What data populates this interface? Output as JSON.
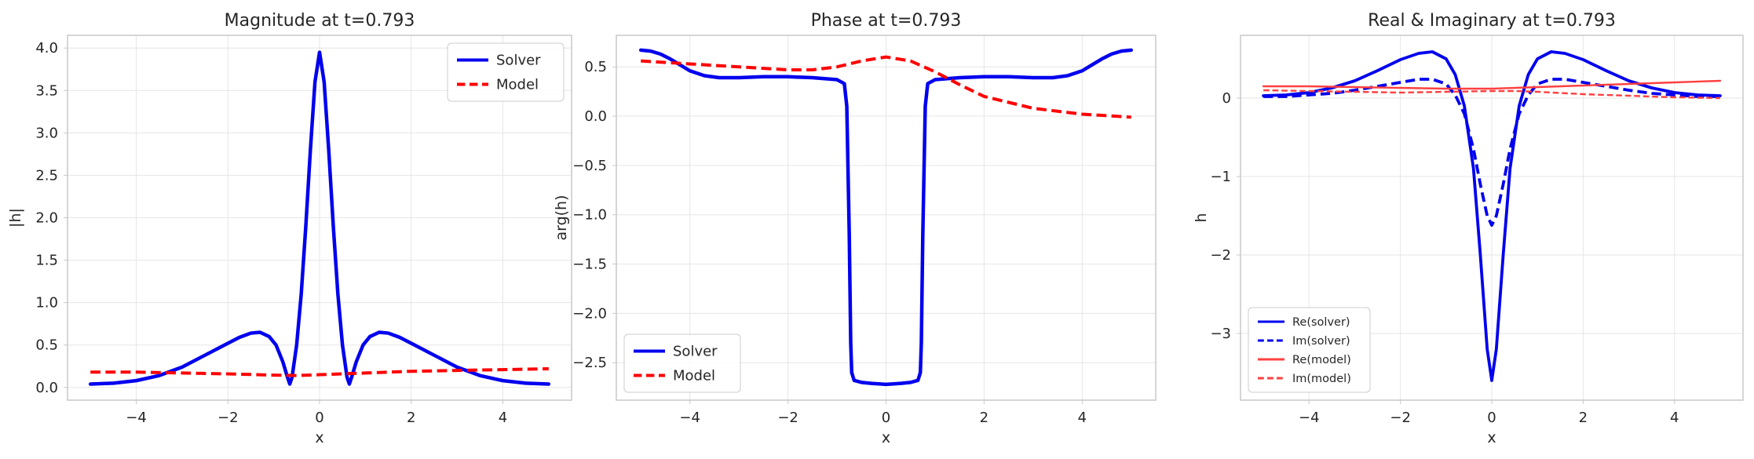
{
  "chart_data": [
    {
      "type": "line",
      "title": "Magnitude at t=0.793",
      "xlabel": "x",
      "ylabel": "|h|",
      "xlim": [
        -5.5,
        5.5
      ],
      "ylim": [
        -0.15,
        4.15
      ],
      "xticks": [
        -4,
        -2,
        0,
        2,
        4
      ],
      "yticks": [
        0.0,
        0.5,
        1.0,
        1.5,
        2.0,
        2.5,
        3.0,
        3.5,
        4.0
      ],
      "ytick_labels": [
        "0.0",
        "0.5",
        "1.0",
        "1.5",
        "2.0",
        "2.5",
        "3.0",
        "3.5",
        "4.0"
      ],
      "grid": true,
      "legend": "top-right",
      "series": [
        {
          "name": "Solver",
          "color": "#0000ee",
          "style": "solid",
          "x": [
            -5,
            -4.5,
            -4,
            -3.5,
            -3,
            -2.5,
            -2,
            -1.75,
            -1.5,
            -1.3,
            -1.1,
            -0.95,
            -0.8,
            -0.7,
            -0.65,
            -0.6,
            -0.5,
            -0.4,
            -0.3,
            -0.2,
            -0.1,
            0,
            0.1,
            0.2,
            0.3,
            0.4,
            0.5,
            0.6,
            0.65,
            0.7,
            0.8,
            0.95,
            1.1,
            1.3,
            1.5,
            1.75,
            2,
            2.5,
            3,
            3.5,
            4,
            4.5,
            5
          ],
          "y": [
            0.04,
            0.05,
            0.08,
            0.14,
            0.24,
            0.38,
            0.52,
            0.59,
            0.64,
            0.65,
            0.6,
            0.5,
            0.3,
            0.12,
            0.04,
            0.12,
            0.5,
            1.1,
            1.9,
            2.8,
            3.6,
            3.95,
            3.6,
            2.8,
            1.9,
            1.1,
            0.5,
            0.12,
            0.04,
            0.12,
            0.3,
            0.5,
            0.6,
            0.65,
            0.64,
            0.59,
            0.52,
            0.38,
            0.24,
            0.14,
            0.08,
            0.05,
            0.04
          ]
        },
        {
          "name": "Model",
          "color": "#ff0000",
          "style": "dashed",
          "x": [
            -5,
            -4,
            -3,
            -2,
            -1,
            -0.5,
            0,
            1,
            2,
            3,
            4,
            5
          ],
          "y": [
            0.18,
            0.18,
            0.17,
            0.16,
            0.145,
            0.14,
            0.15,
            0.17,
            0.19,
            0.2,
            0.21,
            0.22
          ]
        }
      ]
    },
    {
      "type": "line",
      "title": "Phase at t=0.793",
      "xlabel": "x",
      "ylabel": "arg(h)",
      "xlim": [
        -5.5,
        5.5
      ],
      "ylim": [
        -2.88,
        0.82
      ],
      "xticks": [
        -4,
        -2,
        0,
        2,
        4
      ],
      "yticks": [
        0.5,
        0.0,
        -0.5,
        -1.0,
        -1.5,
        -2.0,
        -2.5
      ],
      "ytick_labels": [
        "0.5",
        "0.0",
        "−0.5",
        "−1.0",
        "−1.5",
        "−2.0",
        "−2.5"
      ],
      "grid": true,
      "legend": "bottom-left",
      "series": [
        {
          "name": "Solver",
          "color": "#0000ee",
          "style": "solid",
          "x": [
            -5,
            -4.8,
            -4.6,
            -4.4,
            -4.2,
            -4,
            -3.7,
            -3.4,
            -3,
            -2.5,
            -2,
            -1.5,
            -1,
            -0.85,
            -0.8,
            -0.75,
            -0.72,
            -0.7,
            -0.65,
            -0.5,
            -0.3,
            0,
            0.3,
            0.5,
            0.65,
            0.7,
            0.72,
            0.75,
            0.8,
            0.85,
            1,
            1.5,
            2,
            2.5,
            3,
            3.4,
            3.7,
            4,
            4.2,
            4.4,
            4.6,
            4.8,
            5
          ],
          "y": [
            0.67,
            0.66,
            0.63,
            0.58,
            0.52,
            0.46,
            0.41,
            0.39,
            0.39,
            0.4,
            0.4,
            0.39,
            0.37,
            0.33,
            0.1,
            -1.2,
            -2.3,
            -2.6,
            -2.68,
            -2.7,
            -2.71,
            -2.72,
            -2.71,
            -2.7,
            -2.68,
            -2.6,
            -2.3,
            -1.2,
            0.1,
            0.33,
            0.37,
            0.39,
            0.4,
            0.4,
            0.39,
            0.39,
            0.41,
            0.46,
            0.52,
            0.58,
            0.63,
            0.66,
            0.67
          ]
        },
        {
          "name": "Model",
          "color": "#ff0000",
          "style": "dashed",
          "x": [
            -5,
            -4,
            -3,
            -2,
            -1.5,
            -1,
            -0.5,
            0,
            0.5,
            1,
            1.5,
            2,
            3,
            4,
            5
          ],
          "y": [
            0.56,
            0.53,
            0.5,
            0.47,
            0.47,
            0.5,
            0.56,
            0.6,
            0.56,
            0.45,
            0.32,
            0.2,
            0.08,
            0.02,
            -0.01
          ]
        }
      ]
    },
    {
      "type": "line",
      "title": "Real & Imaginary at t=0.793",
      "xlabel": "x",
      "ylabel": "h",
      "xlim": [
        -5.5,
        5.5
      ],
      "ylim": [
        -3.85,
        0.8
      ],
      "xticks": [
        -4,
        -2,
        0,
        2,
        4
      ],
      "yticks": [
        0,
        -1,
        -2,
        -3
      ],
      "ytick_labels": [
        "0",
        "−1",
        "−2",
        "−3"
      ],
      "grid": true,
      "legend": "bottom-left",
      "series": [
        {
          "name": "Re(solver)",
          "color": "#0000ee",
          "style": "solid",
          "x": [
            -5,
            -4.5,
            -4,
            -3.5,
            -3,
            -2.5,
            -2,
            -1.6,
            -1.3,
            -1.0,
            -0.8,
            -0.6,
            -0.4,
            -0.25,
            -0.1,
            0,
            0.1,
            0.25,
            0.4,
            0.6,
            0.8,
            1.0,
            1.3,
            1.6,
            2,
            2.5,
            3,
            3.5,
            4,
            4.5,
            5
          ],
          "y": [
            0.03,
            0.04,
            0.07,
            0.13,
            0.22,
            0.35,
            0.49,
            0.57,
            0.59,
            0.5,
            0.3,
            -0.1,
            -0.9,
            -2.0,
            -3.2,
            -3.6,
            -3.2,
            -2.0,
            -0.9,
            -0.1,
            0.3,
            0.5,
            0.59,
            0.57,
            0.49,
            0.35,
            0.22,
            0.13,
            0.07,
            0.04,
            0.03
          ]
        },
        {
          "name": "Im(solver)",
          "color": "#0000ee",
          "style": "dashed",
          "x": [
            -5,
            -4.5,
            -4,
            -3.5,
            -3,
            -2.5,
            -2,
            -1.6,
            -1.3,
            -1.0,
            -0.8,
            -0.6,
            -0.4,
            -0.25,
            -0.1,
            0,
            0.1,
            0.25,
            0.4,
            0.6,
            0.8,
            1.0,
            1.3,
            1.6,
            2,
            2.5,
            3,
            3.5,
            4,
            4.5,
            5
          ],
          "y": [
            0.02,
            0.02,
            0.04,
            0.06,
            0.1,
            0.15,
            0.2,
            0.24,
            0.24,
            0.18,
            0.04,
            -0.2,
            -0.65,
            -1.1,
            -1.5,
            -1.62,
            -1.5,
            -1.1,
            -0.65,
            -0.2,
            0.04,
            0.18,
            0.24,
            0.24,
            0.2,
            0.15,
            0.1,
            0.06,
            0.04,
            0.02,
            0.02
          ]
        },
        {
          "name": "Re(model)",
          "color": "#ff4040",
          "style": "solid",
          "x": [
            -5,
            -4,
            -3,
            -2,
            -1,
            0,
            1,
            2,
            3,
            4,
            5
          ],
          "y": [
            0.15,
            0.15,
            0.14,
            0.13,
            0.12,
            0.12,
            0.14,
            0.16,
            0.18,
            0.2,
            0.22
          ]
        },
        {
          "name": "Im(model)",
          "color": "#ff4040",
          "style": "dashed",
          "x": [
            -5,
            -4,
            -3,
            -2,
            -1,
            0,
            0.5,
            1,
            2,
            3,
            4,
            5
          ],
          "y": [
            0.1,
            0.09,
            0.08,
            0.07,
            0.08,
            0.09,
            0.09,
            0.08,
            0.05,
            0.03,
            0.01,
            0.0
          ]
        }
      ]
    }
  ]
}
